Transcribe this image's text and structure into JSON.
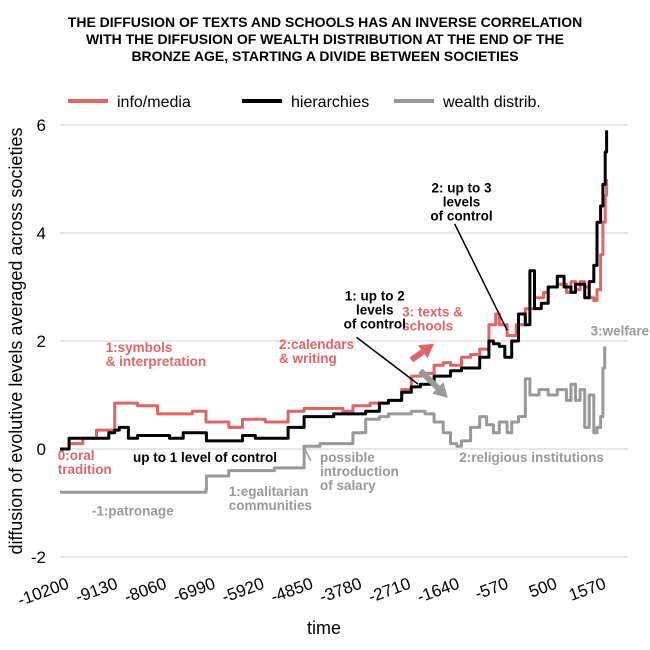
{
  "chart_data": {
    "type": "line",
    "title_lines": [
      "THE DIFFUSION OF TEXTS AND SCHOOLS HAS AN INVERSE CORRELATION",
      "WITH THE DIFFUSION OF WEALTH DISTRIBUTION AT THE END OF THE",
      "BRONZE AGE, STARTING A DIVIDE BETWEEN SOCIETIES"
    ],
    "xlabel": "time",
    "ylabel": "diffusion of evolutive levels averaged across societies",
    "xlim": [
      -10200,
      2250
    ],
    "ylim": [
      -2,
      6
    ],
    "x_ticks": [
      -10200,
      -9130,
      -8060,
      -6990,
      -5920,
      -4850,
      -3780,
      -2710,
      -1640,
      -570,
      500,
      1570
    ],
    "x_tick_labels": [
      "-10200",
      "-9130",
      "-8060",
      "-6990",
      "-5920",
      "-4850",
      "-3780",
      "-2710",
      "-1640",
      "-570",
      "500",
      "1570"
    ],
    "y_ticks": [
      -2,
      0,
      2,
      4,
      6
    ],
    "y_tick_labels": [
      "-2",
      "0",
      "2",
      "4",
      "6"
    ],
    "grid": true,
    "legend_position": "top",
    "series": [
      {
        "name": "info/media",
        "color": "#e06666",
        "points": [
          [
            -10200,
            0
          ],
          [
            -10000,
            0.1
          ],
          [
            -9700,
            0.2
          ],
          [
            -9400,
            0.35
          ],
          [
            -9130,
            0.35
          ],
          [
            -9000,
            0.85
          ],
          [
            -8700,
            0.85
          ],
          [
            -8500,
            0.8
          ],
          [
            -8100,
            0.8
          ],
          [
            -8060,
            0.65
          ],
          [
            -7600,
            0.65
          ],
          [
            -7300,
            0.7
          ],
          [
            -7000,
            0.5
          ],
          [
            -6700,
            0.5
          ],
          [
            -6500,
            0.4
          ],
          [
            -6200,
            0.55
          ],
          [
            -5920,
            0.55
          ],
          [
            -5700,
            0.5
          ],
          [
            -5400,
            0.5
          ],
          [
            -5200,
            0.7
          ],
          [
            -4850,
            0.75
          ],
          [
            -4400,
            0.75
          ],
          [
            -4000,
            0.7
          ],
          [
            -3780,
            0.8
          ],
          [
            -3400,
            0.85
          ],
          [
            -3000,
            0.9
          ],
          [
            -2710,
            1.1
          ],
          [
            -2500,
            1.35
          ],
          [
            -2200,
            1.4
          ],
          [
            -2000,
            1.55
          ],
          [
            -1800,
            1.6
          ],
          [
            -1640,
            1.55
          ],
          [
            -1400,
            1.7
          ],
          [
            -1200,
            1.75
          ],
          [
            -1000,
            1.85
          ],
          [
            -800,
            2.3
          ],
          [
            -650,
            2.5
          ],
          [
            -570,
            2.3
          ],
          [
            -400,
            2.1
          ],
          [
            -200,
            2.3
          ],
          [
            0,
            2.6
          ],
          [
            200,
            2.8
          ],
          [
            400,
            2.9
          ],
          [
            500,
            3.0
          ],
          [
            700,
            3.05
          ],
          [
            900,
            2.9
          ],
          [
            1000,
            3.1
          ],
          [
            1100,
            2.95
          ],
          [
            1200,
            3.1
          ],
          [
            1300,
            3.0
          ],
          [
            1400,
            2.8
          ],
          [
            1500,
            2.75
          ],
          [
            1570,
            2.95
          ],
          [
            1650,
            3.6
          ],
          [
            1700,
            4.2
          ],
          [
            1750,
            4.7
          ],
          [
            1780,
            5.0
          ]
        ]
      },
      {
        "name": "hierarchies",
        "color": "#000000",
        "points": [
          [
            -10200,
            0
          ],
          [
            -10000,
            0.2
          ],
          [
            -9700,
            0.2
          ],
          [
            -9400,
            0.2
          ],
          [
            -9130,
            0.3
          ],
          [
            -9000,
            0.35
          ],
          [
            -8900,
            0.4
          ],
          [
            -8700,
            0.2
          ],
          [
            -8500,
            0.25
          ],
          [
            -8060,
            0.25
          ],
          [
            -7800,
            0.2
          ],
          [
            -7500,
            0.3
          ],
          [
            -7200,
            0.3
          ],
          [
            -6990,
            0.15
          ],
          [
            -6500,
            0.15
          ],
          [
            -6200,
            0.25
          ],
          [
            -5920,
            0.2
          ],
          [
            -5500,
            0.2
          ],
          [
            -5200,
            0.4
          ],
          [
            -4850,
            0.6
          ],
          [
            -4500,
            0.6
          ],
          [
            -4200,
            0.65
          ],
          [
            -3780,
            0.65
          ],
          [
            -3500,
            0.7
          ],
          [
            -3200,
            0.85
          ],
          [
            -3000,
            0.9
          ],
          [
            -2710,
            1.05
          ],
          [
            -2500,
            1.15
          ],
          [
            -2300,
            1.2
          ],
          [
            -2000,
            1.35
          ],
          [
            -1640,
            1.45
          ],
          [
            -1400,
            1.5
          ],
          [
            -1200,
            1.5
          ],
          [
            -1000,
            1.7
          ],
          [
            -800,
            2.0
          ],
          [
            -700,
            1.95
          ],
          [
            -570,
            1.9
          ],
          [
            -450,
            1.7
          ],
          [
            -300,
            2.0
          ],
          [
            -150,
            2.5
          ],
          [
            0,
            2.3
          ],
          [
            100,
            3.3
          ],
          [
            200,
            2.6
          ],
          [
            350,
            2.7
          ],
          [
            500,
            3.0
          ],
          [
            700,
            3.2
          ],
          [
            850,
            3.0
          ],
          [
            1000,
            2.9
          ],
          [
            1100,
            3.05
          ],
          [
            1200,
            3.05
          ],
          [
            1300,
            2.8
          ],
          [
            1400,
            3.1
          ],
          [
            1500,
            3.4
          ],
          [
            1570,
            4.2
          ],
          [
            1650,
            4.5
          ],
          [
            1700,
            4.9
          ],
          [
            1750,
            5.5
          ],
          [
            1780,
            5.9
          ]
        ]
      },
      {
        "name": "wealth distrib.",
        "color": "#999999",
        "points": [
          [
            -10200,
            -0.8
          ],
          [
            -9700,
            -0.8
          ],
          [
            -9130,
            -0.8
          ],
          [
            -8060,
            -0.8
          ],
          [
            -7300,
            -0.8
          ],
          [
            -7000,
            -0.75
          ],
          [
            -6990,
            -0.5
          ],
          [
            -6500,
            -0.4
          ],
          [
            -5920,
            -0.4
          ],
          [
            -5500,
            -0.35
          ],
          [
            -5100,
            -0.35
          ],
          [
            -4850,
            0.05
          ],
          [
            -4500,
            0.1
          ],
          [
            -4000,
            0.1
          ],
          [
            -3780,
            0.3
          ],
          [
            -3500,
            0.55
          ],
          [
            -3200,
            0.6
          ],
          [
            -3000,
            0.65
          ],
          [
            -2710,
            0.65
          ],
          [
            -2500,
            0.7
          ],
          [
            -2200,
            0.65
          ],
          [
            -2000,
            0.5
          ],
          [
            -1800,
            0.3
          ],
          [
            -1640,
            0.1
          ],
          [
            -1500,
            0.05
          ],
          [
            -1400,
            0.15
          ],
          [
            -1200,
            0.4
          ],
          [
            -1000,
            0.6
          ],
          [
            -850,
            0.45
          ],
          [
            -700,
            0.3
          ],
          [
            -570,
            0.5
          ],
          [
            -400,
            0.3
          ],
          [
            -300,
            0.5
          ],
          [
            -150,
            0.6
          ],
          [
            0,
            1.3
          ],
          [
            100,
            1.0
          ],
          [
            300,
            1.1
          ],
          [
            500,
            1.0
          ],
          [
            700,
            1.1
          ],
          [
            900,
            0.9
          ],
          [
            1000,
            1.2
          ],
          [
            1100,
            0.9
          ],
          [
            1200,
            1.1
          ],
          [
            1300,
            0.4
          ],
          [
            1400,
            1.0
          ],
          [
            1500,
            0.3
          ],
          [
            1570,
            0.4
          ],
          [
            1650,
            0.6
          ],
          [
            1700,
            1.5
          ],
          [
            1740,
            1.9
          ]
        ]
      }
    ],
    "annotations": [
      {
        "lines": [
          "0:oral",
          "tradition"
        ],
        "color": "#e06666",
        "x": -10250,
        "y": -0.2,
        "anchor": "start"
      },
      {
        "lines": [
          "1:symbols",
          "& interpretation"
        ],
        "color": "#e06666",
        "x": -9200,
        "y": 1.8,
        "anchor": "start"
      },
      {
        "lines": [
          "2:calendars",
          "& writing"
        ],
        "color": "#e06666",
        "x": -5400,
        "y": 1.85,
        "anchor": "start"
      },
      {
        "lines": [
          "3: texts &",
          "schools"
        ],
        "color": "#e06666",
        "x": -2700,
        "y": 2.45,
        "anchor": "start"
      },
      {
        "lines": [
          "3:welfare"
        ],
        "color": "#999999",
        "x": 1430,
        "y": 2.1,
        "anchor": "start"
      },
      {
        "lines": [
          "1: up to 2",
          "levels",
          "of control"
        ],
        "color": "#000000",
        "x": -3300,
        "y": 2.75,
        "anchor": "middle"
      },
      {
        "lines": [
          "2: up to 3",
          "levels",
          "of control"
        ],
        "color": "#000000",
        "x": -1400,
        "y": 4.75,
        "anchor": "middle"
      },
      {
        "lines": [
          "up to 1 level of control"
        ],
        "color": "#000000",
        "x": -8600,
        "y": -0.24,
        "anchor": "start"
      },
      {
        "lines": [
          "possible",
          "introduction",
          "of salary"
        ],
        "color": "#999999",
        "x": -4500,
        "y": -0.24,
        "anchor": "start"
      },
      {
        "lines": [
          "1:egalitarian",
          "communities"
        ],
        "color": "#999999",
        "x": -6500,
        "y": -0.87,
        "anchor": "start"
      },
      {
        "lines": [
          "-1:patronage"
        ],
        "color": "#999999",
        "x": -9500,
        "y": -1.23,
        "anchor": "start"
      },
      {
        "lines": [
          "2:religious institutions"
        ],
        "color": "#999999",
        "x": -1450,
        "y": -0.24,
        "anchor": "start"
      }
    ],
    "leader_lines": [
      {
        "from": [
          -3700,
          2.07
        ],
        "to": [
          -2350,
          1.2
        ],
        "color": "#000000"
      },
      {
        "from": [
          -1550,
          4.17
        ],
        "to": [
          -400,
          2.2
        ],
        "color": "#000000"
      },
      {
        "from": [
          -4700,
          -0.22
        ],
        "to": [
          -4850,
          0.02
        ],
        "color": "#999999"
      }
    ],
    "arrows": [
      {
        "from": [
          -2500,
          1.65
        ],
        "to": [
          -2000,
          1.95
        ],
        "color": "#e06666"
      },
      {
        "from": [
          -2300,
          1.45
        ],
        "to": [
          -1700,
          0.95
        ],
        "color": "#999999"
      }
    ]
  }
}
